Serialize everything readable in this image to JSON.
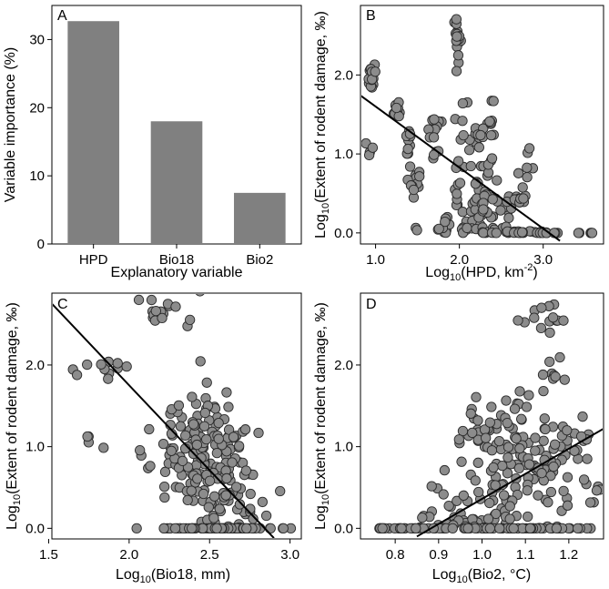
{
  "panels": [
    {
      "letter": "A",
      "chart_data": {
        "type": "bar",
        "categories": [
          "HPD",
          "Bio18",
          "Bio2"
        ],
        "values": [
          32.7,
          18.0,
          7.5
        ],
        "ylim": [
          0,
          35
        ],
        "yticks": [
          "0",
          "10",
          "20",
          "30"
        ],
        "ylabel": "Variable importance (%)",
        "xlabel": "Explanatory variable",
        "bar_color": "#808080"
      }
    },
    {
      "letter": "B",
      "chart_data": {
        "type": "scatter",
        "xlim": [
          0.82,
          3.72
        ],
        "ylim": [
          -0.14,
          2.88
        ],
        "xticks": [
          "1.0",
          "2.0",
          "3.0"
        ],
        "yticks": [
          "0.0",
          "1.0",
          "2.0"
        ],
        "xlabel": {
          "pre": "Log",
          "sub": "10",
          "post": "(HPD, km",
          "sup": "-2",
          "end": ")"
        },
        "ylabel": {
          "pre": "Log",
          "sub": "10",
          "post": "(Extent of rodent damage, ‰)"
        },
        "fit_line": [
          [
            0.82,
            1.74
          ],
          [
            3.2,
            -0.1
          ]
        ],
        "point_color": "#8c8c8c",
        "clusters": [
          {
            "x": 0.95,
            "y": 2.0,
            "sx": 0.02,
            "sy": 0.08,
            "n": 16
          },
          {
            "x": 0.93,
            "y": 1.05,
            "sx": 0.02,
            "sy": 0.1,
            "n": 4
          },
          {
            "x": 1.25,
            "y": 1.55,
            "sx": 0.02,
            "sy": 0.06,
            "n": 12
          },
          {
            "x": 1.4,
            "y": 1.15,
            "sx": 0.02,
            "sy": 0.08,
            "n": 10
          },
          {
            "x": 1.48,
            "y": 0.68,
            "sx": 0.04,
            "sy": 0.1,
            "n": 12
          },
          {
            "x": 1.5,
            "y": 0.05,
            "sx": 0.02,
            "sy": 0.02,
            "n": 2
          },
          {
            "x": 1.72,
            "y": 1.35,
            "sx": 0.03,
            "sy": 0.08,
            "n": 8
          },
          {
            "x": 1.7,
            "y": 1.05,
            "sx": 0.03,
            "sy": 0.07,
            "n": 6
          },
          {
            "x": 1.85,
            "y": 0.08,
            "sx": 0.04,
            "sy": 0.06,
            "n": 12
          },
          {
            "x": 1.97,
            "y": 2.5,
            "sx": 0.02,
            "sy": 0.15,
            "n": 16
          },
          {
            "x": 1.97,
            "y": 0.5,
            "sx": 0.02,
            "sy": 0.1,
            "n": 6
          },
          {
            "x": 2.05,
            "y": 1.1,
            "sx": 0.08,
            "sy": 0.3,
            "n": 16
          },
          {
            "x": 2.12,
            "y": 0.12,
            "sx": 0.06,
            "sy": 0.08,
            "n": 12
          },
          {
            "x": 2.2,
            "y": 0.5,
            "sx": 0.06,
            "sy": 0.25,
            "n": 16
          },
          {
            "x": 2.25,
            "y": 1.25,
            "sx": 0.05,
            "sy": 0.12,
            "n": 8
          },
          {
            "x": 2.33,
            "y": 0.3,
            "sx": 0.06,
            "sy": 0.25,
            "n": 20
          },
          {
            "x": 2.38,
            "y": 1.2,
            "sx": 0.04,
            "sy": 0.3,
            "n": 12
          },
          {
            "x": 2.42,
            "y": 0.02,
            "sx": 0.08,
            "sy": 0.02,
            "n": 14
          },
          {
            "x": 2.55,
            "y": 0.35,
            "sx": 0.06,
            "sy": 0.2,
            "n": 10
          },
          {
            "x": 2.65,
            "y": 0.01,
            "sx": 0.08,
            "sy": 0.01,
            "n": 14
          },
          {
            "x": 2.72,
            "y": 0.5,
            "sx": 0.04,
            "sy": 0.15,
            "n": 10
          },
          {
            "x": 2.82,
            "y": 0.9,
            "sx": 0.03,
            "sy": 0.1,
            "n": 5
          },
          {
            "x": 2.85,
            "y": 0.01,
            "sx": 0.12,
            "sy": 0.01,
            "n": 12
          },
          {
            "x": 3.05,
            "y": 0.0,
            "sx": 0.06,
            "sy": 0.0,
            "n": 6
          },
          {
            "x": 3.52,
            "y": 0.0,
            "sx": 0.06,
            "sy": 0.0,
            "n": 5
          }
        ]
      }
    },
    {
      "letter": "C",
      "chart_data": {
        "type": "scatter",
        "xlim": [
          1.52,
          3.07
        ],
        "ylim": [
          -0.13,
          2.88
        ],
        "xticks": [
          "1.5",
          "2.0",
          "2.5",
          "3.0"
        ],
        "yticks": [
          "0.0",
          "1.0",
          "2.0"
        ],
        "xlabel": {
          "pre": "Log",
          "sub": "10",
          "post": "(Bio18, mm)"
        },
        "ylabel": {
          "pre": "Log",
          "sub": "10",
          "post": "(Extent of rodent damage, ‰)"
        },
        "fit_line": [
          [
            1.52,
            2.75
          ],
          [
            2.9,
            -0.12
          ]
        ],
        "point_color": "#8c8c8c",
        "clusters": [
          {
            "x": 2.2,
            "y": 2.6,
            "sx": 0.1,
            "sy": 0.13,
            "n": 16
          },
          {
            "x": 1.9,
            "y": 2.0,
            "sx": 0.06,
            "sy": 0.08,
            "n": 10
          },
          {
            "x": 1.63,
            "y": 1.95,
            "sx": 0.04,
            "sy": 0.05,
            "n": 2
          },
          {
            "x": 1.8,
            "y": 1.08,
            "sx": 0.05,
            "sy": 0.08,
            "n": 4
          },
          {
            "x": 2.12,
            "y": 0.9,
            "sx": 0.04,
            "sy": 0.1,
            "n": 3
          },
          {
            "x": 2.45,
            "y": 1.0,
            "sx": 0.15,
            "sy": 0.35,
            "n": 130
          },
          {
            "x": 2.6,
            "y": 0.45,
            "sx": 0.12,
            "sy": 0.25,
            "n": 60
          },
          {
            "x": 2.6,
            "y": 0.0,
            "sx": 0.2,
            "sy": 0.0,
            "n": 70
          }
        ]
      }
    },
    {
      "letter": "D",
      "chart_data": {
        "type": "scatter",
        "xlim": [
          0.72,
          1.28
        ],
        "ylim": [
          -0.13,
          2.88
        ],
        "xticks": [
          "0.8",
          "0.9",
          "1.0",
          "1.1",
          "1.2"
        ],
        "yticks": [
          "0.0",
          "1.0",
          "2.0"
        ],
        "xlabel": {
          "pre": "Log",
          "sub": "10",
          "post": "(Bio2, °C)"
        },
        "ylabel": {
          "pre": "Log",
          "sub": "10",
          "post": "(Extent of rodent damage, ‰)"
        },
        "fit_line": [
          [
            0.85,
            -0.1
          ],
          [
            1.28,
            1.22
          ]
        ],
        "point_color": "#8c8c8c",
        "clusters": [
          {
            "x": 1.15,
            "y": 2.6,
            "sx": 0.025,
            "sy": 0.12,
            "n": 14
          },
          {
            "x": 1.16,
            "y": 1.95,
            "sx": 0.02,
            "sy": 0.1,
            "n": 8
          },
          {
            "x": 1.1,
            "y": 1.0,
            "sx": 0.08,
            "sy": 0.35,
            "n": 130
          },
          {
            "x": 1.07,
            "y": 0.35,
            "sx": 0.1,
            "sy": 0.22,
            "n": 60
          },
          {
            "x": 0.93,
            "y": 0.08,
            "sx": 0.05,
            "sy": 0.07,
            "n": 20
          },
          {
            "x": 1.02,
            "y": 0.0,
            "sx": 0.15,
            "sy": 0.0,
            "n": 80
          },
          {
            "x": 0.78,
            "y": 0.0,
            "sx": 0.03,
            "sy": 0.0,
            "n": 10
          }
        ]
      }
    }
  ]
}
